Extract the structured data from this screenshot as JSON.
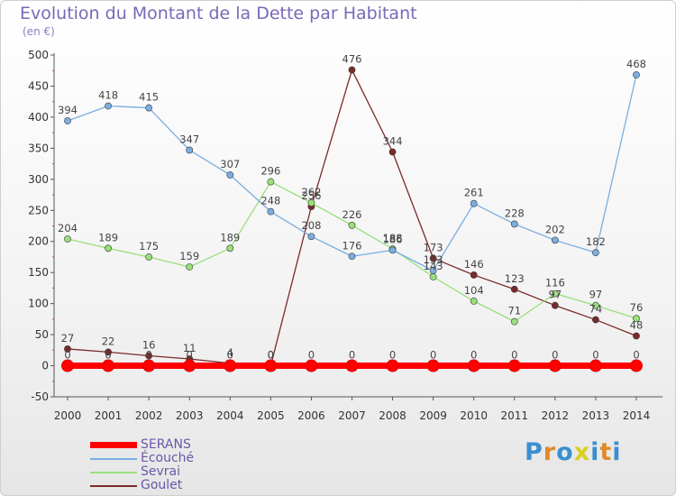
{
  "title": "Evolution du Montant de la Dette par Habitant",
  "subtitle": "(en €)",
  "logo_text": "Proxiti",
  "chart_data": {
    "type": "line",
    "title": "Evolution du Montant de la Dette par Habitant",
    "ylabel": "(en €)",
    "xlabel": "",
    "x": [
      "2000",
      "2001",
      "2002",
      "2003",
      "2004",
      "2005",
      "2006",
      "2007",
      "2008",
      "2009",
      "2010",
      "2011",
      "2012",
      "2013",
      "2014"
    ],
    "ylim": [
      -50,
      500
    ],
    "yticks": [
      -50,
      0,
      50,
      100,
      150,
      200,
      250,
      300,
      350,
      400,
      450,
      500
    ],
    "grid": false,
    "legend_position": "bottom-left",
    "series": [
      {
        "name": "SERANS",
        "color": "#ff0000",
        "values": [
          0,
          0,
          0,
          0,
          0,
          0,
          0,
          0,
          0,
          0,
          0,
          0,
          0,
          0,
          0
        ]
      },
      {
        "name": "Écouché",
        "color": "#7aaee0",
        "values": [
          394,
          418,
          415,
          347,
          307,
          248,
          208,
          176,
          186,
          153,
          261,
          228,
          202,
          182,
          468
        ]
      },
      {
        "name": "Sevrai",
        "color": "#99e07a",
        "values": [
          204,
          189,
          175,
          159,
          189,
          296,
          262,
          226,
          188,
          143,
          104,
          71,
          116,
          97,
          76
        ]
      },
      {
        "name": "Goulet",
        "color": "#7a2a2a",
        "values": [
          27,
          22,
          16,
          11,
          4,
          0,
          256,
          476,
          344,
          173,
          146,
          123,
          97,
          74,
          48
        ]
      }
    ]
  }
}
